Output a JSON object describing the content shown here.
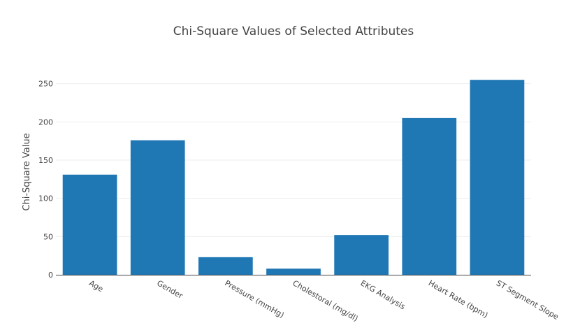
{
  "chart_data": {
    "type": "bar",
    "title": "Chi-Square Values of Selected Attributes",
    "xlabel": "",
    "ylabel": "Chi-Square Value",
    "categories": [
      "Age",
      "Gender",
      "Pressure (mmHg)",
      "Cholestoral (mg/dl)",
      "EKG Analysis",
      "Heart Rate (bpm)",
      "ST Segment Slope"
    ],
    "values": [
      131,
      176,
      23,
      8,
      52,
      205,
      255
    ],
    "ylim": [
      0,
      268
    ],
    "yticks": [
      0,
      50,
      100,
      150,
      200,
      250
    ],
    "grid": true,
    "bar_color": "#1f77b4",
    "legend": "none"
  }
}
